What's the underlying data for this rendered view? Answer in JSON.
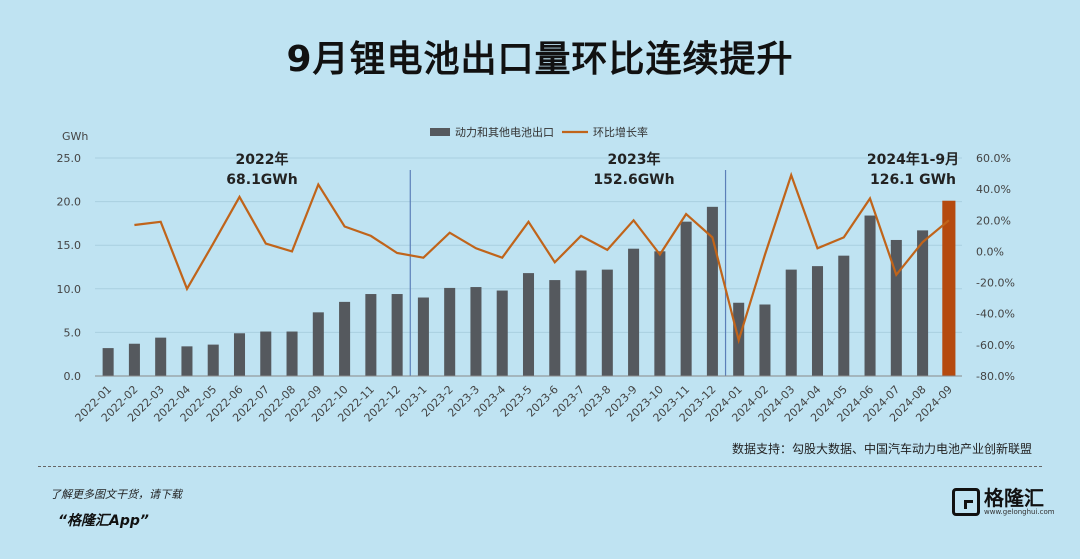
{
  "page": {
    "title": "9月锂电池出口量环比连续提升",
    "source": "数据支持：勾股大数据、中国汽车动力电池产业创新联盟",
    "footer_line1": "了解更多图文干货，请下载",
    "footer_line2": "“格隆汇App”",
    "logo_text": "格隆汇",
    "logo_url": "www.gelonghui.com"
  },
  "chart_data": {
    "type": "bar",
    "left_unit": "GWh",
    "left_ylim": [
      0,
      25
    ],
    "left_ticks": [
      "0.0",
      "5.0",
      "10.0",
      "15.0",
      "20.0",
      "25.0"
    ],
    "right_ylim": [
      -80,
      60
    ],
    "right_ticks": [
      "-80.0%",
      "-60.0%",
      "-40.0%",
      "-20.0%",
      "0.0%",
      "20.0%",
      "40.0%",
      "60.0%"
    ],
    "categories": [
      "2022-01",
      "2022-02",
      "2022-03",
      "2022-04",
      "2022-05",
      "2022-06",
      "2022-07",
      "2022-08",
      "2022-09",
      "2022-10",
      "2022-11",
      "2022-12",
      "2023-1",
      "2023-2",
      "2023-3",
      "2023-4",
      "2023-5",
      "2023-6",
      "2023-7",
      "2023-8",
      "2023-9",
      "2023-10",
      "2023-11",
      "2023-12",
      "2024-01",
      "2024-02",
      "2024-03",
      "2024-04",
      "2024-05",
      "2024-06",
      "2024-07",
      "2024-08",
      "2024-09"
    ],
    "series": [
      {
        "name": "动力和其他电池出口",
        "axis": "left",
        "color": "#55595e",
        "highlight_color": "#b54a0f",
        "highlight_index": 32,
        "values": [
          3.2,
          3.7,
          4.4,
          3.4,
          3.6,
          4.9,
          5.1,
          5.1,
          7.3,
          8.5,
          9.4,
          9.4,
          9.0,
          10.1,
          10.2,
          9.8,
          11.8,
          11.0,
          12.1,
          12.2,
          14.6,
          14.3,
          17.7,
          19.4,
          8.4,
          8.2,
          12.2,
          12.6,
          13.8,
          18.4,
          15.6,
          16.7,
          20.1
        ]
      },
      {
        "name": "环比增长率",
        "axis": "right",
        "color": "#c0641a",
        "values": [
          null,
          17.0,
          19.0,
          -24.0,
          5.0,
          35.0,
          5.0,
          0.0,
          43.0,
          16.0,
          10.0,
          -1.0,
          -4.0,
          12.0,
          2.0,
          -4.0,
          19.0,
          -7.0,
          10.0,
          1.0,
          20.0,
          -2.0,
          24.0,
          9.0,
          -57.0,
          -2.0,
          49.0,
          2.0,
          9.0,
          34.0,
          -15.0,
          6.0,
          20.0
        ]
      }
    ],
    "annotations": [
      {
        "line1": "2022年",
        "line2": "68.1GWh"
      },
      {
        "line1": "2023年",
        "line2": "152.6GWh"
      },
      {
        "line1": "2024年1-9月",
        "line2": "126.1 GWh"
      }
    ],
    "grid": true,
    "legend_position": "top-center"
  }
}
